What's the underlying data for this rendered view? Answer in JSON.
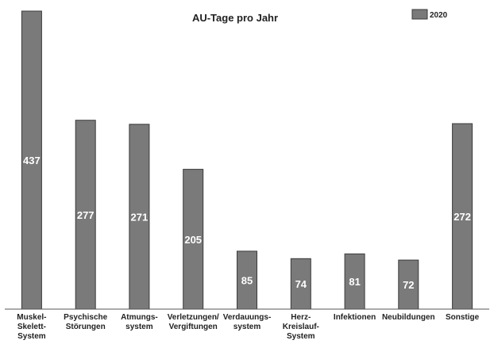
{
  "chart_data": {
    "type": "bar",
    "title": "AU-Tage pro Jahr",
    "xlabel": "",
    "ylabel": "",
    "categories": [
      "Muskel-Skelett-System",
      "Psychische Störungen",
      "Atmungs-system",
      "Verletzungen/Vergiftungen",
      "Verdauungs-system",
      "Herz-Kreislauf-System",
      "Infektionen",
      "Neubildungen",
      "Sonstige"
    ],
    "category_lines": [
      [
        "Muskel-",
        "Skelett-",
        "System"
      ],
      [
        "Psychische",
        "Störungen"
      ],
      [
        "Atmungs-",
        "system"
      ],
      [
        "Verletzungen/",
        "Vergiftungen"
      ],
      [
        "Verdauungs-",
        "system"
      ],
      [
        "Herz-",
        "Kreislauf-",
        "System"
      ],
      [
        "Infektionen"
      ],
      [
        "Neubildungen"
      ],
      [
        "Sonstige"
      ]
    ],
    "series": [
      {
        "name": "2020",
        "values": [
          437,
          277,
          271,
          205,
          85,
          74,
          81,
          72,
          272
        ]
      }
    ],
    "ylim": [
      0,
      437
    ],
    "grid": false,
    "legend_position": "top-right",
    "colors": {
      "bar": "#7a7a7a",
      "bar_stroke": "#3a3a3a",
      "axis": "#555555"
    }
  }
}
